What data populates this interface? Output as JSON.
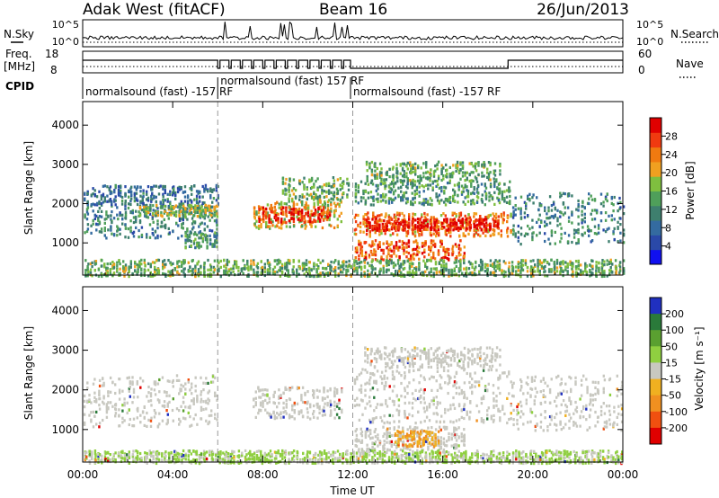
{
  "header": {
    "station": "Adak West (fitACF)",
    "beam": "Beam 16",
    "date": "26/Jun/2013"
  },
  "noise_panel": {
    "left_label": "N.Sky",
    "right_label": "N.Search",
    "left_ticks": [
      "10^5",
      "10^0"
    ],
    "right_ticks": [
      "10^5",
      "10^0"
    ]
  },
  "freq_panel": {
    "left_label_1": "Freq.",
    "left_label_2": "[MHz]",
    "right_label": "Nave",
    "left_ticks": [
      "18",
      "8"
    ],
    "right_ticks": [
      "60",
      "0"
    ]
  },
  "cpid": {
    "label": "CPID",
    "segments": [
      {
        "text": "normalsound (fast) -157 RF",
        "start_hour": 0,
        "end_hour": 6.0
      },
      {
        "text": "normalsound (fast) 157 RF",
        "start_hour": 6.0,
        "end_hour": 11.9
      },
      {
        "text": "normalsound (fast) -157 RF",
        "start_hour": 11.9,
        "end_hour": 24
      }
    ]
  },
  "colors": {
    "power_scale": [
      "#1010f0",
      "#2a49a8",
      "#346ba0",
      "#3e7f6e",
      "#4f9f5a",
      "#7fbf3f",
      "#f0a020",
      "#f07a10",
      "#f03a10",
      "#e00000"
    ],
    "velocity_scale": [
      "#2030c0",
      "#2a7a3a",
      "#5aa030",
      "#8fcf40",
      "#c8c8c0",
      "#f0b020",
      "#f09020",
      "#f05010",
      "#e00000"
    ]
  },
  "chart_data": [
    {
      "type": "heatmap",
      "name_hint": "power",
      "xlabel": "",
      "ylabel": "Slant Range [km]",
      "x_ticks": [
        "00:00",
        "04:00",
        "08:00",
        "12:00",
        "16:00",
        "20:00",
        "00:00"
      ],
      "y_ticks": [
        1000,
        2000,
        3000,
        4000
      ],
      "xlim_hours": [
        0,
        24
      ],
      "ylim_km": [
        180,
        4600
      ],
      "colorbar": {
        "label": "Power [dB]",
        "ticks": [
          4,
          8,
          12,
          16,
          20,
          24,
          28
        ],
        "range": [
          0,
          30
        ]
      },
      "echo_bands": [
        {
          "t0": 0.0,
          "t1": 6.0,
          "r0": 1150,
          "r1": 2000,
          "level": 10
        },
        {
          "t0": 0.0,
          "t1": 6.0,
          "r0": 2000,
          "r1": 2500,
          "level": 8
        },
        {
          "t0": 2.5,
          "t1": 6.0,
          "r0": 1700,
          "r1": 2000,
          "level": 16
        },
        {
          "t0": 4.5,
          "t1": 6.0,
          "r0": 900,
          "r1": 1300,
          "level": 12
        },
        {
          "t0": 7.5,
          "t1": 11.5,
          "r0": 1400,
          "r1": 2100,
          "level": 18
        },
        {
          "t0": 7.8,
          "t1": 11.0,
          "r0": 1550,
          "r1": 1950,
          "level": 26
        },
        {
          "t0": 8.8,
          "t1": 11.8,
          "r0": 2100,
          "r1": 2700,
          "level": 14
        },
        {
          "t0": 12.0,
          "t1": 19.0,
          "r0": 1200,
          "r1": 1800,
          "level": 22
        },
        {
          "t0": 12.5,
          "t1": 18.5,
          "r0": 1350,
          "r1": 1650,
          "level": 28
        },
        {
          "t0": 12.0,
          "t1": 17.0,
          "r0": 600,
          "r1": 1100,
          "level": 24
        },
        {
          "t0": 12.0,
          "t1": 19.0,
          "r0": 2000,
          "r1": 2600,
          "level": 12
        },
        {
          "t0": 12.5,
          "t1": 18.5,
          "r0": 2600,
          "r1": 3100,
          "level": 14
        },
        {
          "t0": 19.0,
          "t1": 24.0,
          "r0": 1000,
          "r1": 2300,
          "level": 10
        },
        {
          "t0": 0.0,
          "t1": 24.0,
          "r0": 180,
          "r1": 600,
          "level": 14
        }
      ]
    },
    {
      "type": "heatmap",
      "name_hint": "velocity",
      "xlabel": "Time UT",
      "ylabel": "Slant Range [km]",
      "x_ticks": [
        "00:00",
        "04:00",
        "08:00",
        "12:00",
        "16:00",
        "20:00",
        "00:00"
      ],
      "y_ticks": [
        1000,
        2000,
        3000,
        4000
      ],
      "xlim_hours": [
        0,
        24
      ],
      "ylim_km": [
        180,
        4600
      ],
      "colorbar": {
        "label": "Velocity [m s⁻¹]",
        "ticks": [
          200,
          100,
          50,
          15,
          -15,
          -50,
          -100,
          -200
        ],
        "range": [
          -250,
          250
        ]
      },
      "echo_bands": [
        {
          "t0": 0.0,
          "t1": 6.0,
          "r0": 1100,
          "r1": 2400,
          "level": 0
        },
        {
          "t0": 7.5,
          "t1": 11.5,
          "r0": 1300,
          "r1": 2100,
          "level": 0
        },
        {
          "t0": 12.0,
          "t1": 19.0,
          "r0": 1200,
          "r1": 2600,
          "level": 0
        },
        {
          "t0": 12.5,
          "t1": 18.5,
          "r0": 2600,
          "r1": 3100,
          "level": 0
        },
        {
          "t0": 12.0,
          "t1": 17.0,
          "r0": 500,
          "r1": 1100,
          "level": 0
        },
        {
          "t0": 13.8,
          "t1": 15.8,
          "r0": 600,
          "r1": 1000,
          "level": -80
        },
        {
          "t0": 19.0,
          "t1": 24.0,
          "r0": 1000,
          "r1": 2400,
          "level": 0
        },
        {
          "t0": 0.0,
          "t1": 24.0,
          "r0": 180,
          "r1": 500,
          "level": 30
        }
      ]
    }
  ]
}
